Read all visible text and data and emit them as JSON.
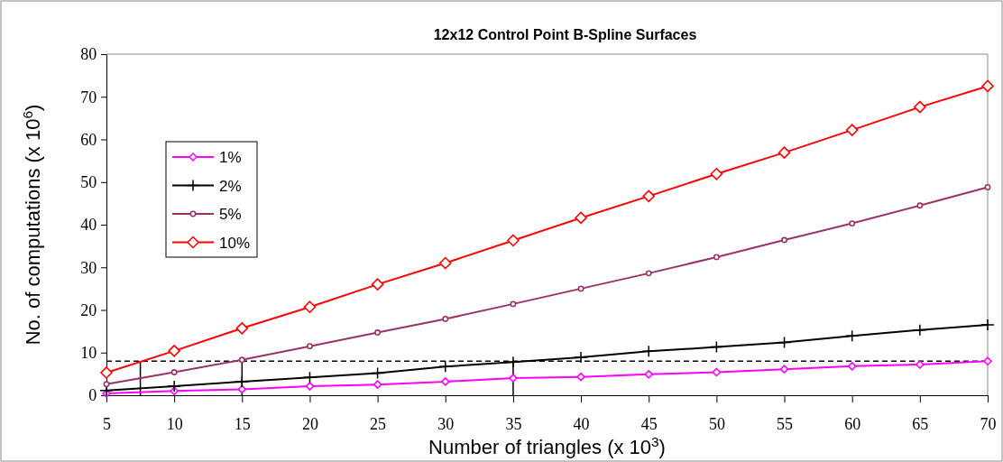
{
  "chart_data": {
    "type": "line",
    "title": "12x12 Control Point B-Spline Surfaces",
    "xlabel": "Number of triangles (x 10$^{3}$)",
    "ylabel": "No. of computations (x 10$^{6}$)",
    "x": [
      5,
      10,
      15,
      20,
      25,
      30,
      35,
      40,
      45,
      50,
      55,
      60,
      65,
      70
    ],
    "xlim": [
      5,
      70
    ],
    "xticks": [
      5,
      10,
      15,
      20,
      25,
      30,
      35,
      40,
      45,
      50,
      55,
      60,
      65,
      70
    ],
    "ylim": [
      0,
      80
    ],
    "yticks": [
      0,
      10,
      20,
      30,
      40,
      50,
      60,
      70,
      80
    ],
    "grid": false,
    "legend": "top left",
    "series": [
      {
        "name": "1%",
        "color": "#ff00ff",
        "marker": "diamond",
        "values": [
          0.4,
          1.0,
          1.4,
          2.1,
          2.5,
          3.2,
          4.0,
          4.3,
          4.9,
          5.4,
          6.1,
          6.8,
          7.2,
          8.0
        ]
      },
      {
        "name": "2%",
        "color": "#000000",
        "marker": "cross",
        "values": [
          1.1,
          2.1,
          3.2,
          4.2,
          5.2,
          6.7,
          7.8,
          8.9,
          10.3,
          11.3,
          12.4,
          13.9,
          15.3,
          16.5
        ]
      },
      {
        "name": "5%",
        "color": "#993366",
        "marker": "circle",
        "values": [
          2.6,
          5.4,
          8.3,
          11.5,
          14.7,
          17.9,
          21.4,
          25.0,
          28.6,
          32.4,
          36.4,
          40.3,
          44.5,
          48.8
        ]
      },
      {
        "name": "10%",
        "color": "#ff0000",
        "marker": "diamond",
        "values": [
          5.3,
          10.4,
          15.7,
          20.7,
          26.0,
          31.0,
          36.3,
          41.6,
          46.7,
          51.9,
          56.9,
          62.2,
          67.6,
          72.5
        ]
      }
    ],
    "ref_lines": [
      {
        "axis": "y",
        "value": 8,
        "color": "#000000",
        "line_style": "dashed"
      },
      {
        "axis": "x",
        "value": 7.5,
        "color": "#000000",
        "line_style": "solid"
      },
      {
        "axis": "x",
        "value": 15,
        "color": "#000000",
        "line_style": "solid"
      },
      {
        "axis": "x",
        "value": 35,
        "color": "#000000",
        "line_style": "solid"
      }
    ]
  }
}
